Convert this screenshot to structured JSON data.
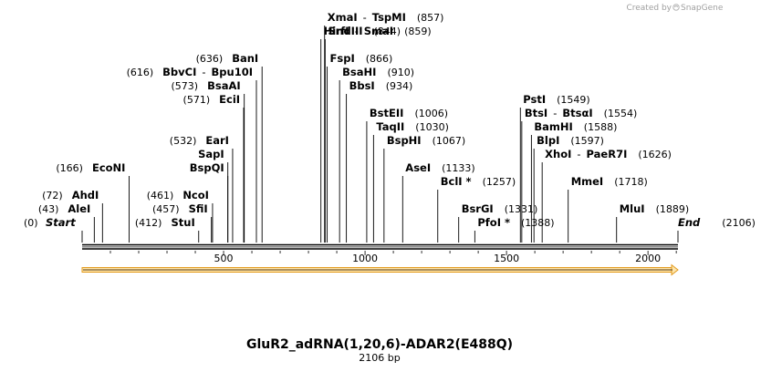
{
  "brand": {
    "created_by": "Created by",
    "app": "SnapGene"
  },
  "title": "GluR2_adRNA(1,20,6)-ADAR2(E488Q)",
  "length_label": "2106 bp",
  "sequence_length": 2106,
  "axis_ticks": [
    "500",
    "1000",
    "1500",
    "2000"
  ],
  "sites": [
    {
      "id": "start",
      "name": "Start",
      "pos": "(0)",
      "bp": 0,
      "row": 0,
      "italic": true
    },
    {
      "id": "alei",
      "name": "AleI",
      "pos": "(43)",
      "bp": 43,
      "row": 1
    },
    {
      "id": "ahdi",
      "name": "AhdI",
      "pos": "(72)",
      "bp": 72,
      "row": 2
    },
    {
      "id": "econi",
      "name": "EcoNI",
      "pos": "(166)",
      "bp": 166,
      "row": 4
    },
    {
      "id": "stui",
      "name": "StuI",
      "pos": "(412)",
      "bp": 412,
      "row": 0
    },
    {
      "id": "sfii",
      "name": "SfiI",
      "pos": "(457)",
      "bp": 457,
      "row": 1
    },
    {
      "id": "ncoi",
      "name": "NcoI",
      "pos": "(461)",
      "bp": 461,
      "row": 2
    },
    {
      "id": "bspqi",
      "name": "BspQI",
      "pos": "",
      "bp": 515,
      "row": 4
    },
    {
      "id": "sapi",
      "name": "SapI",
      "pos": "",
      "bp": 515,
      "row": 5
    },
    {
      "id": "eari",
      "name": "EarI",
      "pos": "(532)",
      "bp": 532,
      "row": 6
    },
    {
      "id": "ecii",
      "name": "EciI",
      "pos": "(571)",
      "bp": 571,
      "row": 9
    },
    {
      "id": "bsaai",
      "name": "BsaAI",
      "pos": "(573)",
      "bp": 573,
      "row": 10
    },
    {
      "id": "bbvci",
      "name": "BbvCI",
      "sep": "-",
      "alias": "Bpu10I",
      "pos": "(616)",
      "bp": 616,
      "row": 11
    },
    {
      "id": "bani",
      "name": "BanI",
      "pos": "(636)",
      "bp": 636,
      "row": 12
    },
    {
      "id": "hindiii",
      "name": "HindIII",
      "pos": "(844)",
      "bp": 844,
      "row": 14
    },
    {
      "id": "xmai",
      "name": "XmaI",
      "sep": "-",
      "alias": "TspMI",
      "pos": "(857)",
      "bp": 857,
      "row": 15
    },
    {
      "id": "srfi",
      "name": "SrfI",
      "sep": "-",
      "alias": "SmaI",
      "pos": "(859)",
      "bp": 859,
      "row": 14
    },
    {
      "id": "fspi",
      "name": "FspI",
      "pos": "(866)",
      "bp": 866,
      "row": 12
    },
    {
      "id": "bsahi",
      "name": "BsaHI",
      "pos": "(910)",
      "bp": 910,
      "row": 11
    },
    {
      "id": "bbsi",
      "name": "BbsI",
      "pos": "(934)",
      "bp": 934,
      "row": 10
    },
    {
      "id": "bsteii",
      "name": "BstEII",
      "pos": "(1006)",
      "bp": 1006,
      "row": 8
    },
    {
      "id": "taqii",
      "name": "TaqII",
      "pos": "(1030)",
      "bp": 1030,
      "row": 7
    },
    {
      "id": "bsphi",
      "name": "BspHI",
      "pos": "(1067)",
      "bp": 1067,
      "row": 6
    },
    {
      "id": "asei",
      "name": "AseI",
      "pos": "(1133)",
      "bp": 1133,
      "row": 4
    },
    {
      "id": "bcli",
      "name": "BclI *",
      "pos": "(1257)",
      "bp": 1257,
      "row": 3
    },
    {
      "id": "bsrgi",
      "name": "BsrGI",
      "pos": "(1331)",
      "bp": 1331,
      "row": 1
    },
    {
      "id": "pfoi",
      "name": "PfoI *",
      "pos": "(1388)",
      "bp": 1388,
      "row": 0
    },
    {
      "id": "psti",
      "name": "PstI",
      "pos": "(1549)",
      "bp": 1549,
      "row": 9
    },
    {
      "id": "btsi",
      "name": "BtsI",
      "sep": "-",
      "alias": "BtsαI",
      "pos": "(1554)",
      "bp": 1554,
      "row": 8
    },
    {
      "id": "bamhi",
      "name": "BamHI",
      "pos": "(1588)",
      "bp": 1588,
      "row": 7
    },
    {
      "id": "blpi",
      "name": "BlpI",
      "pos": "(1597)",
      "bp": 1597,
      "row": 6
    },
    {
      "id": "xhoi",
      "name": "XhoI",
      "sep": "-",
      "alias": "PaeR7I",
      "pos": "(1626)",
      "bp": 1626,
      "row": 5
    },
    {
      "id": "mmei",
      "name": "MmeI",
      "pos": "(1718)",
      "bp": 1718,
      "row": 3
    },
    {
      "id": "mlui",
      "name": "MluI",
      "pos": "(1889)",
      "bp": 1889,
      "row": 1
    },
    {
      "id": "end",
      "name": "End",
      "pos": "(2106)",
      "bp": 2106,
      "row": 0,
      "italic": true
    }
  ]
}
